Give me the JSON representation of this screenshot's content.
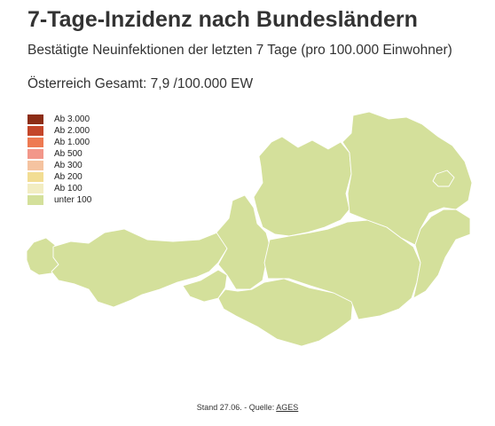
{
  "header": {
    "title": "7-Tage-Inzidenz nach Bundesländern",
    "subtitle": "Bestätigte Neuinfektionen der letzten 7 Tage (pro 100.000 Einwohner)",
    "total": "Österreich Gesamt: 7,9 /100.000 EW"
  },
  "legend": {
    "items": [
      {
        "label": "Ab 3.000",
        "color": "#8c2d16"
      },
      {
        "label": "Ab 2.000",
        "color": "#c4462a"
      },
      {
        "label": "Ab 1.000",
        "color": "#ee7a52"
      },
      {
        "label": "Ab 500",
        "color": "#f2978a"
      },
      {
        "label": "Ab 300",
        "color": "#f5c3a0"
      },
      {
        "label": "Ab 200",
        "color": "#f2dd93"
      },
      {
        "label": "Ab 100",
        "color": "#f2edc2"
      },
      {
        "label": "unter 100",
        "color": "#d4e09b"
      }
    ]
  },
  "map": {
    "region_fill": "#d4e09b",
    "border_color": "#ffffff",
    "state_category": "unter 100"
  },
  "footer": {
    "prefix": "Stand 27.06. - Quelle: ",
    "source_link": "AGES"
  }
}
